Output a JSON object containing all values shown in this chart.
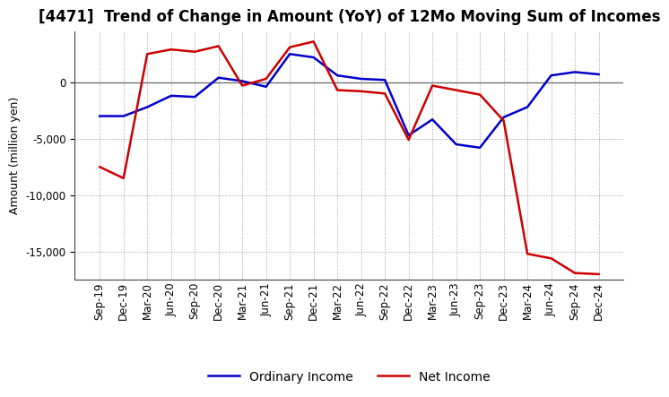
{
  "title": "[4471]  Trend of Change in Amount (YoY) of 12Mo Moving Sum of Incomes",
  "ylabel": "Amount (million yen)",
  "x_labels": [
    "Sep-19",
    "Dec-19",
    "Mar-20",
    "Jun-20",
    "Sep-20",
    "Dec-20",
    "Mar-21",
    "Jun-21",
    "Sep-21",
    "Dec-21",
    "Mar-22",
    "Jun-22",
    "Sep-22",
    "Dec-22",
    "Mar-23",
    "Jun-23",
    "Sep-23",
    "Dec-23",
    "Mar-24",
    "Jun-24",
    "Sep-24",
    "Dec-24"
  ],
  "ordinary_income": [
    -3000,
    -3000,
    -2200,
    -1200,
    -1300,
    400,
    100,
    -400,
    2500,
    2200,
    600,
    300,
    200,
    -4700,
    -3300,
    -5500,
    -5800,
    -3100,
    -2200,
    600,
    900,
    700
  ],
  "net_income": [
    -7500,
    -8500,
    2500,
    2900,
    2700,
    3200,
    -300,
    300,
    3100,
    3600,
    -700,
    -800,
    -1000,
    -5100,
    -300,
    -700,
    -1100,
    -3400,
    -15200,
    -15600,
    -16900,
    -17000
  ],
  "ordinary_income_color": "#0000cc",
  "net_income_color": "#cc0000",
  "background_color": "#ffffff",
  "grid_color": "#999999",
  "ylim": [
    -17500,
    4500
  ],
  "yticks": [
    0,
    -5000,
    -10000,
    -15000
  ],
  "title_fontsize": 12,
  "axis_fontsize": 9,
  "tick_fontsize": 8.5,
  "legend_fontsize": 10
}
